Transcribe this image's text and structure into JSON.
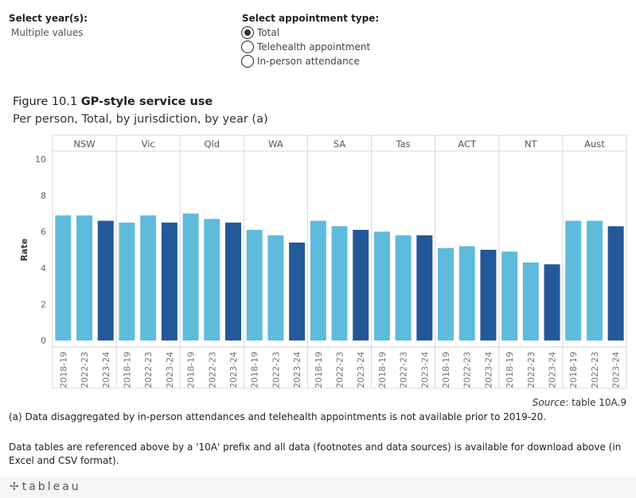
{
  "filters": {
    "year": {
      "label": "Select year(s):",
      "value": "Multiple values"
    },
    "appointment": {
      "label": "Select appointment type:",
      "options": [
        {
          "label": "Total",
          "checked": true
        },
        {
          "label": "Telehealth appointment",
          "checked": false
        },
        {
          "label": "In-person attendance",
          "checked": false
        }
      ]
    }
  },
  "figure": {
    "number": "Figure 10.1",
    "title_bold": "GP-style service use",
    "subtitle": "Per person, Total, by jurisdiction, by year (a)"
  },
  "chart_data": {
    "type": "bar",
    "ylabel": "Rate",
    "ylim": [
      0,
      10
    ],
    "yticks": [
      0,
      2,
      4,
      6,
      8,
      10
    ],
    "grid": false,
    "jurisdictions": [
      "NSW",
      "Vic",
      "Qld",
      "WA",
      "SA",
      "Tas",
      "ACT",
      "NT",
      "Aust"
    ],
    "years": [
      "2018-19",
      "2022-23",
      "2023-24"
    ],
    "colors": {
      "2018-19": "#5fbbdc",
      "2022-23": "#5fbbdc",
      "2023-24": "#23589a"
    },
    "values": {
      "NSW": [
        6.9,
        6.9,
        6.6
      ],
      "Vic": [
        6.5,
        6.9,
        6.5
      ],
      "Qld": [
        7.0,
        6.7,
        6.5
      ],
      "WA": [
        6.1,
        5.8,
        5.4
      ],
      "SA": [
        6.6,
        6.3,
        6.1
      ],
      "Tas": [
        6.0,
        5.8,
        5.8
      ],
      "ACT": [
        5.1,
        5.2,
        5.0
      ],
      "NT": [
        4.9,
        4.3,
        4.2
      ],
      "Aust": [
        6.6,
        6.6,
        6.3
      ]
    }
  },
  "source": {
    "label": "Source",
    "text": ": table 10A.9"
  },
  "notes": {
    "a": "(a) Data disaggregated by in-person attendances and telehealth appointments is not available prior to 2019-20.",
    "tables": "Data tables are referenced above by a '10A' prefix and all data (footnotes and data sources) is available for download above (in Excel and CSV format)."
  },
  "footer": {
    "logo_text": "tableau",
    "logo_icon": "tableau-cross-icon"
  }
}
